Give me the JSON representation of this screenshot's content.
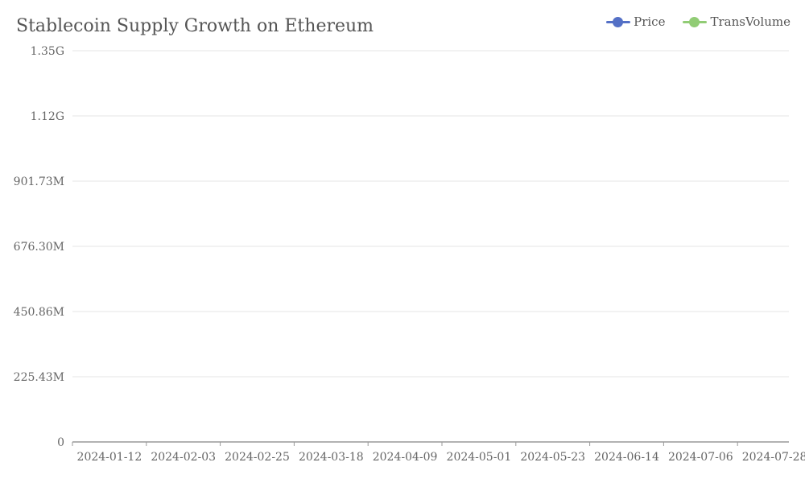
{
  "chart_data": {
    "type": "line",
    "title": "Stablecoin Supply Growth on Ethereum",
    "xlabel": "",
    "ylabel": "",
    "x_tick_labels": [
      "2024-01-12",
      "2024-02-03",
      "2024-02-25",
      "2024-03-18",
      "2024-04-09",
      "2024-05-01",
      "2024-05-23",
      "2024-06-14",
      "2024-07-06",
      "2024-07-28"
    ],
    "y_tick_labels": [
      "0",
      "225.43M",
      "450.86M",
      "676.30M",
      "901.73M",
      "1.12G",
      "1.35G"
    ],
    "ylim": [
      0,
      1352580000
    ],
    "grid": true,
    "legend_position": "top-right",
    "series": [
      {
        "name": "Price",
        "color": "#5470c6",
        "values": []
      },
      {
        "name": "TransVolume",
        "color": "#91cc75",
        "values": []
      }
    ]
  }
}
